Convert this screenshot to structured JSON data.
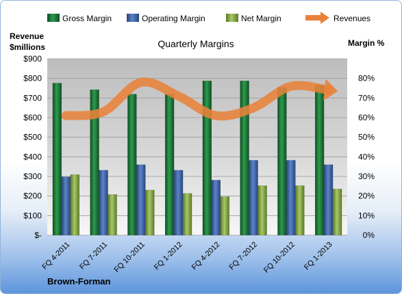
{
  "chart_data": {
    "type": "bar",
    "title": "Quarterly Margins",
    "categories": [
      "FQ 4-2011",
      "FQ 7-2011",
      "FQ 10-2011",
      "FQ 1-2012",
      "FQ 4-2012",
      "FQ 7-2012",
      "FQ 10-2012",
      "FQ 1-2013"
    ],
    "series": [
      {
        "name": "Gross Margin",
        "axis": "right",
        "color": "#1e7a3a",
        "values": [
          69,
          66,
          64,
          64,
          70,
          70,
          67,
          68
        ]
      },
      {
        "name": "Operating Margin",
        "axis": "right",
        "color": "#3f64a8",
        "values": [
          26.5,
          29.5,
          32,
          29.5,
          25,
          34,
          34,
          32
        ]
      },
      {
        "name": "Net Margin",
        "axis": "right",
        "color": "#8fb04a",
        "values": [
          27.5,
          18.5,
          20.5,
          19,
          17.5,
          22.5,
          22.5,
          21
        ]
      },
      {
        "name": "Revenues",
        "axis": "left",
        "type": "line",
        "color": "#e8823a",
        "values": [
          610,
          630,
          780,
          710,
          610,
          650,
          760,
          740
        ]
      }
    ],
    "left_axis": {
      "label_line1": "Revenue",
      "label_line2": "$millions",
      "range": [
        0,
        900
      ],
      "ticks": [
        "$-",
        "$100",
        "$200",
        "$300",
        "$400",
        "$500",
        "$600",
        "$700",
        "$800",
        "$900"
      ]
    },
    "right_axis": {
      "label": "Margin %",
      "range": [
        0,
        80
      ],
      "ticks": [
        "0%",
        "10%",
        "20%",
        "30%",
        "40%",
        "50%",
        "60%",
        "70%",
        "80%"
      ]
    },
    "legend_position": "top",
    "grid": true
  },
  "footer_label": "Brown-Forman"
}
